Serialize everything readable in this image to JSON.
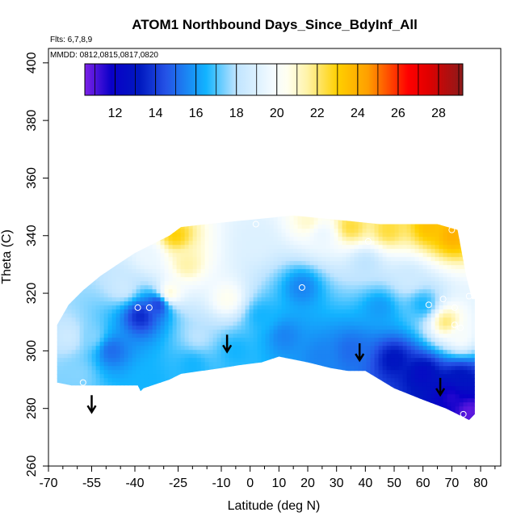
{
  "chart_data": {
    "type": "heatmap",
    "title": "ATOM1 Northbound Days_Since_BdyInf_All",
    "subtitle_flights": "Flts: 6,7,8,9",
    "subtitle_dates": "MMDD: 0812,0815,0817,0820",
    "xlabel": "Latitude (deg N)",
    "ylabel": "Theta (C)",
    "xlim": [
      -70,
      87
    ],
    "ylim": [
      260,
      405
    ],
    "x_ticks": [
      -70,
      -55,
      -40,
      -25,
      -10,
      0,
      10,
      20,
      30,
      40,
      50,
      60,
      70,
      80
    ],
    "x_tick_labels": [
      "-70",
      "-55",
      "-40",
      "-25",
      "-10",
      "0",
      "10",
      "20",
      "30",
      "40",
      "50",
      "60",
      "70",
      "80"
    ],
    "x_minor_ticks": [
      -65,
      -60,
      -50,
      -45,
      -35,
      -30,
      -20,
      -15,
      -5,
      5,
      15,
      25,
      35,
      45,
      55,
      65,
      75,
      85
    ],
    "y_ticks": [
      260,
      280,
      300,
      320,
      340,
      360,
      380,
      400
    ],
    "y_tick_labels": [
      "260",
      "280",
      "300",
      "320",
      "340",
      "360",
      "380",
      "400"
    ],
    "colorbar": {
      "min": 10.5,
      "max": 29.2,
      "ticks": [
        12,
        14,
        16,
        18,
        20,
        22,
        24,
        26,
        28
      ],
      "tick_labels": [
        "12",
        "14",
        "16",
        "18",
        "20",
        "22",
        "24",
        "26",
        "28"
      ],
      "stops": [
        {
          "v": 10.5,
          "c": "#7d22e8"
        },
        {
          "v": 11.8,
          "c": "#0a00c8"
        },
        {
          "v": 13.2,
          "c": "#0018c0"
        },
        {
          "v": 14.5,
          "c": "#2452e6"
        },
        {
          "v": 16.5,
          "c": "#12b4ff"
        },
        {
          "v": 18.0,
          "c": "#bfe4ff"
        },
        {
          "v": 19.8,
          "c": "#f4fbff"
        },
        {
          "v": 20.5,
          "c": "#fffff0"
        },
        {
          "v": 21.5,
          "c": "#fff3a8"
        },
        {
          "v": 23.0,
          "c": "#ffd000"
        },
        {
          "v": 24.5,
          "c": "#ff9f00"
        },
        {
          "v": 26.5,
          "c": "#ff0000"
        },
        {
          "v": 27.5,
          "c": "#e00000"
        },
        {
          "v": 29.2,
          "c": "#8c1a1a"
        }
      ]
    },
    "coverage_top": [
      [
        -67,
        309
      ],
      [
        -63,
        316
      ],
      [
        -58,
        321
      ],
      [
        -52,
        326
      ],
      [
        -46,
        330
      ],
      [
        -40,
        334
      ],
      [
        -34,
        337
      ],
      [
        -28,
        340
      ],
      [
        -24,
        343
      ],
      [
        -15,
        344
      ],
      [
        -5,
        345
      ],
      [
        5,
        346
      ],
      [
        15,
        347
      ],
      [
        25,
        346
      ],
      [
        35,
        345
      ],
      [
        45,
        344
      ],
      [
        55,
        344
      ],
      [
        65,
        344
      ],
      [
        72,
        342
      ],
      [
        75,
        326
      ],
      [
        77,
        318
      ],
      [
        78,
        318
      ]
    ],
    "coverage_bottom": [
      [
        78,
        278
      ],
      [
        76,
        276
      ],
      [
        74,
        277
      ],
      [
        68,
        280
      ],
      [
        60,
        283
      ],
      [
        50,
        287
      ],
      [
        40,
        293
      ],
      [
        34,
        293
      ],
      [
        28,
        294
      ],
      [
        20,
        296
      ],
      [
        10,
        298
      ],
      [
        4,
        296
      ],
      [
        -4,
        295
      ],
      [
        -10,
        294
      ],
      [
        -17,
        293
      ],
      [
        -24,
        292
      ],
      [
        -28,
        290
      ],
      [
        -37,
        287
      ],
      [
        -38,
        286
      ],
      [
        -39,
        288
      ],
      [
        -62,
        288
      ],
      [
        -67,
        289
      ]
    ],
    "field_anchors": [
      {
        "lat": -60,
        "theta": 292,
        "value": 17.5
      },
      {
        "lat": -55,
        "theta": 305,
        "value": 17.5
      },
      {
        "lat": -63,
        "theta": 305,
        "value": 18.5
      },
      {
        "lat": -48,
        "theta": 300,
        "value": 15.0
      },
      {
        "lat": -38,
        "theta": 312,
        "value": 13.5
      },
      {
        "lat": -32,
        "theta": 316,
        "value": 14.0
      },
      {
        "lat": -44,
        "theta": 322,
        "value": 18.5
      },
      {
        "lat": -28,
        "theta": 320,
        "value": 21.0
      },
      {
        "lat": -22,
        "theta": 330,
        "value": 21.5
      },
      {
        "lat": -26,
        "theta": 340,
        "value": 23.0
      },
      {
        "lat": -35,
        "theta": 333,
        "value": 19.5
      },
      {
        "lat": -18,
        "theta": 305,
        "value": 18.0
      },
      {
        "lat": -20,
        "theta": 295,
        "value": 16.5
      },
      {
        "lat": -5,
        "theta": 300,
        "value": 16.5
      },
      {
        "lat": -8,
        "theta": 318,
        "value": 20.5
      },
      {
        "lat": 2,
        "theta": 338,
        "value": 19.0
      },
      {
        "lat": 4,
        "theta": 312,
        "value": 16.5
      },
      {
        "lat": 12,
        "theta": 305,
        "value": 15.5
      },
      {
        "lat": 18,
        "theta": 322,
        "value": 15.5
      },
      {
        "lat": 25,
        "theta": 340,
        "value": 19.5
      },
      {
        "lat": 20,
        "theta": 345,
        "value": 21.0
      },
      {
        "lat": 35,
        "theta": 343,
        "value": 22.5
      },
      {
        "lat": 48,
        "theta": 342,
        "value": 22.5
      },
      {
        "lat": 62,
        "theta": 343,
        "value": 23.5
      },
      {
        "lat": 70,
        "theta": 340,
        "value": 24.0
      },
      {
        "lat": 40,
        "theta": 330,
        "value": 18.0
      },
      {
        "lat": 55,
        "theta": 325,
        "value": 18.5
      },
      {
        "lat": 45,
        "theta": 315,
        "value": 16.0
      },
      {
        "lat": 60,
        "theta": 316,
        "value": 16.5
      },
      {
        "lat": 68,
        "theta": 310,
        "value": 22.0
      },
      {
        "lat": 73,
        "theta": 305,
        "value": 20.0
      },
      {
        "lat": 73,
        "theta": 290,
        "value": 13.0
      },
      {
        "lat": 35,
        "theta": 300,
        "value": 15.0
      },
      {
        "lat": 50,
        "theta": 297,
        "value": 13.0
      },
      {
        "lat": 60,
        "theta": 292,
        "value": 12.5
      },
      {
        "lat": 70,
        "theta": 284,
        "value": 11.5
      },
      {
        "lat": 76,
        "theta": 279,
        "value": 10.8
      },
      {
        "lat": -35,
        "theta": 290,
        "value": 16.5
      },
      {
        "lat": 25,
        "theta": 298,
        "value": 15.5
      }
    ],
    "sample_points": [
      {
        "lat": -58,
        "theta": 289
      },
      {
        "lat": -39,
        "theta": 315
      },
      {
        "lat": -35,
        "theta": 315
      },
      {
        "lat": 2,
        "theta": 344
      },
      {
        "lat": 18,
        "theta": 322
      },
      {
        "lat": 41,
        "theta": 338
      },
      {
        "lat": 62,
        "theta": 316
      },
      {
        "lat": 67,
        "theta": 318
      },
      {
        "lat": 70,
        "theta": 342
      },
      {
        "lat": 71,
        "theta": 315
      },
      {
        "lat": 71,
        "theta": 309
      },
      {
        "lat": 73,
        "theta": 308
      },
      {
        "lat": 76,
        "theta": 319
      },
      {
        "lat": 74,
        "theta": 278
      }
    ],
    "arrows": [
      {
        "lat": -55,
        "theta": 279
      },
      {
        "lat": -8,
        "theta": 300
      },
      {
        "lat": 38,
        "theta": 297
      },
      {
        "lat": 66,
        "theta": 285
      }
    ]
  }
}
